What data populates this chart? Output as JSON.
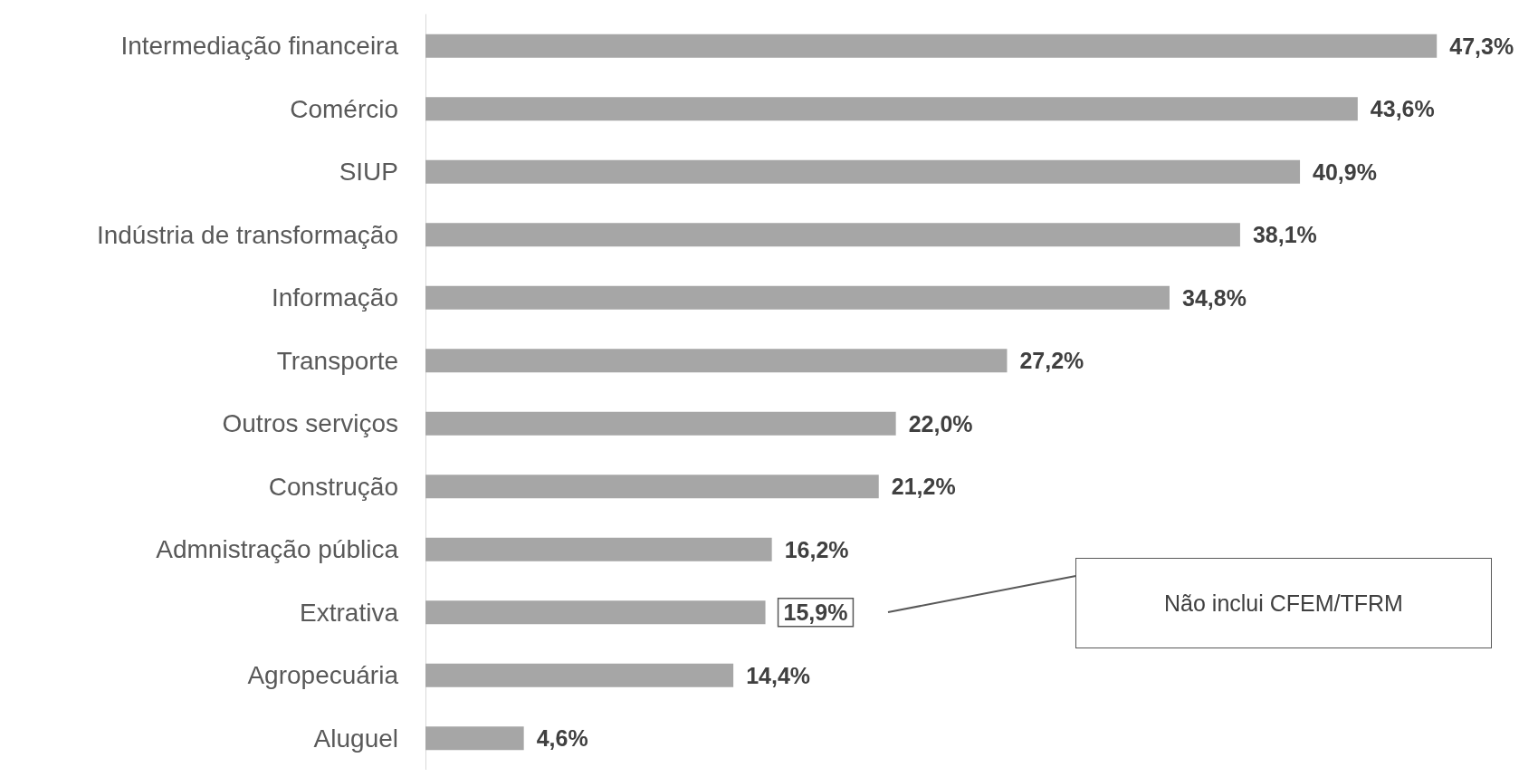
{
  "chart_data": {
    "type": "bar",
    "orientation": "horizontal",
    "categories": [
      "Intermediação financeira",
      "Comércio",
      "SIUP",
      "Indústria de transformação",
      "Informação",
      "Transporte",
      "Outros serviços",
      "Construção",
      "Admnistração pública",
      "Extrativa",
      "Agropecuária",
      "Aluguel"
    ],
    "values": [
      47.3,
      43.6,
      40.9,
      38.1,
      34.8,
      27.2,
      22.0,
      21.2,
      16.2,
      15.9,
      14.4,
      4.6
    ],
    "value_labels": [
      "47,3%",
      "43,6%",
      "40,9%",
      "38,1%",
      "34,8%",
      "27,2%",
      "22,0%",
      "21,2%",
      "16,2%",
      "15,9%",
      "14,4%",
      "4,6%"
    ],
    "color": "#a6a6a6",
    "annotations": [
      "Não inclui CFEM/TFRM"
    ]
  }
}
